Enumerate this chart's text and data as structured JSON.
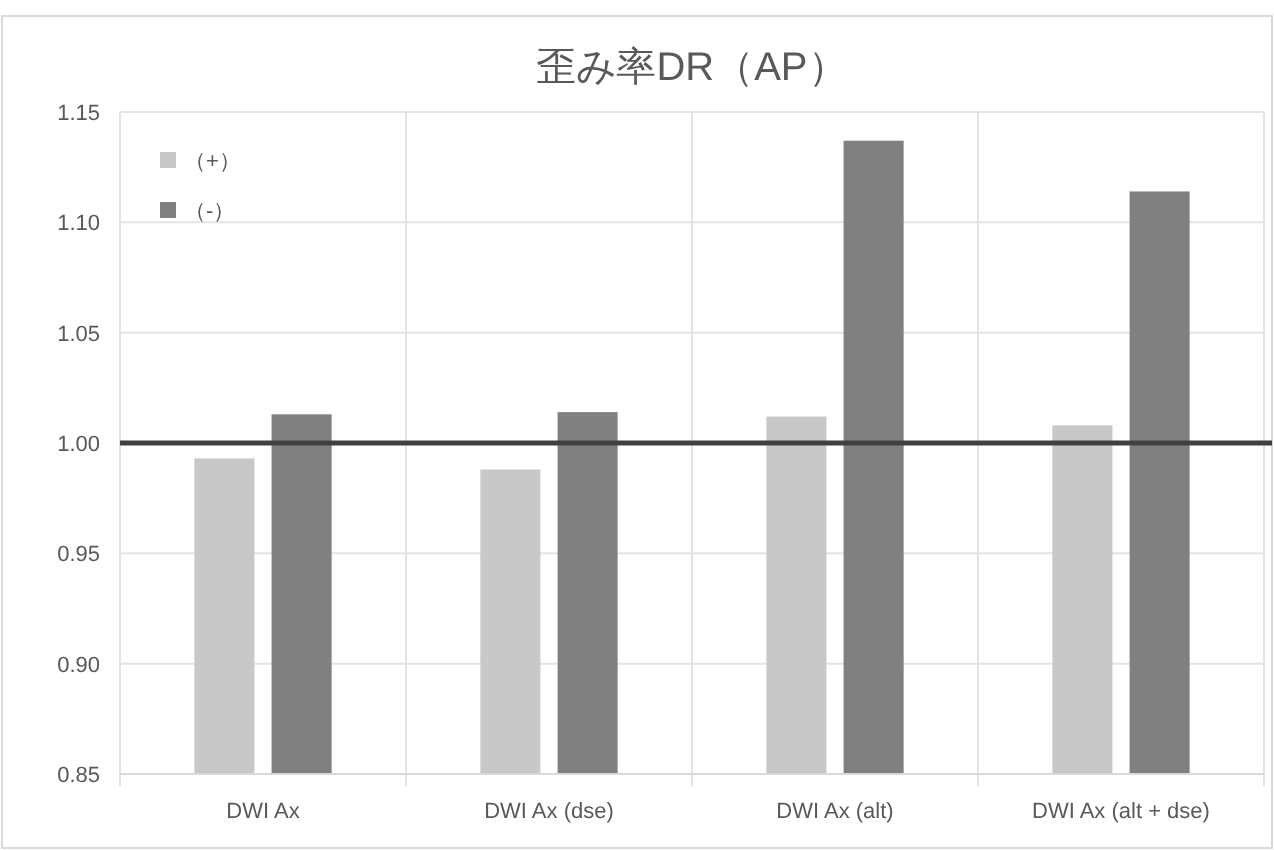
{
  "chart_data": {
    "type": "bar",
    "title": "歪み率DR（AP）",
    "categories": [
      "DWI Ax",
      "DWI Ax (dse)",
      "DWI Ax (alt)",
      "DWI Ax (alt + dse)"
    ],
    "series": [
      {
        "name": "（+）",
        "color": "#c8c8c8",
        "values": [
          0.993,
          0.988,
          1.012,
          1.008
        ]
      },
      {
        "name": "（-）",
        "color": "#808080",
        "values": [
          1.013,
          1.014,
          1.137,
          1.114
        ]
      }
    ],
    "ylim": [
      0.85,
      1.15
    ],
    "yticks": [
      {
        "value": 0.85,
        "label": "0.85"
      },
      {
        "value": 0.9,
        "label": "0.90"
      },
      {
        "value": 0.95,
        "label": "0.95"
      },
      {
        "value": 1.0,
        "label": "1.00"
      },
      {
        "value": 1.05,
        "label": "1.05"
      },
      {
        "value": 1.1,
        "label": "1.10"
      },
      {
        "value": 1.15,
        "label": "1.15"
      }
    ],
    "grid": true,
    "legend": "top left",
    "ref_lines": [
      {
        "axis": "y",
        "value": 1.0,
        "color": "#404040"
      }
    ]
  }
}
